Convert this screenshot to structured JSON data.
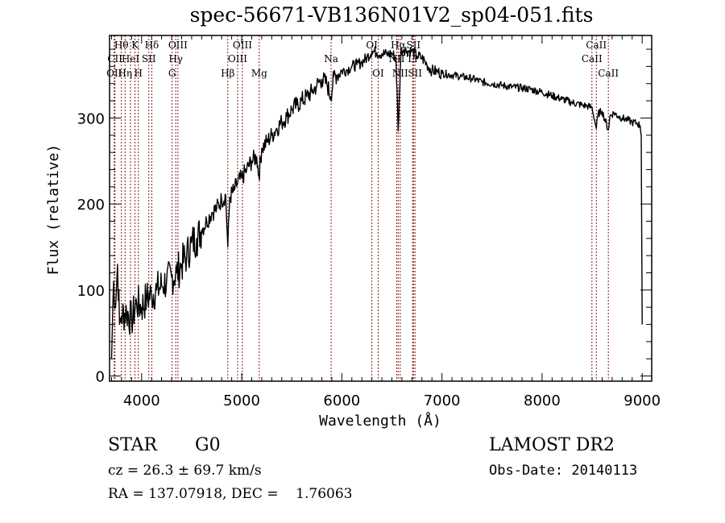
{
  "chart_data": {
    "type": "line",
    "title": "spec-56671-VB136N01V2_sp04-051.fits",
    "xlabel": "Wavelength (Å)",
    "ylabel": "Flux (relative)",
    "xlim": [
      3680,
      9095
    ],
    "ylim": [
      -6,
      396
    ],
    "grid": false,
    "xticks": [
      4000,
      5000,
      6000,
      7000,
      8000,
      9000
    ],
    "xtick_labels": [
      "4000",
      "5000",
      "6000",
      "7000",
      "8000",
      "9000"
    ],
    "yticks": [
      0,
      100,
      200,
      300
    ],
    "ytick_labels": [
      "0",
      "100",
      "200",
      "300"
    ],
    "series": [
      {
        "name": "flux",
        "x": [
          3700,
          3720,
          3740,
          3760,
          3780,
          3800,
          3850,
          3900,
          3950,
          4000,
          4050,
          4100,
          4150,
          4200,
          4250,
          4300,
          4350,
          4400,
          4450,
          4500,
          4550,
          4600,
          4650,
          4700,
          4750,
          4800,
          4840,
          4861,
          4880,
          4920,
          4960,
          5000,
          5050,
          5100,
          5150,
          5172,
          5200,
          5250,
          5300,
          5350,
          5400,
          5450,
          5500,
          5550,
          5600,
          5650,
          5700,
          5750,
          5800,
          5850,
          5890,
          5920,
          5950,
          6000,
          6050,
          6100,
          6150,
          6200,
          6250,
          6300,
          6350,
          6400,
          6450,
          6500,
          6540,
          6563,
          6590,
          6620,
          6650,
          6700,
          6750,
          6800,
          6850,
          6900,
          6950,
          7000,
          7100,
          7200,
          7300,
          7400,
          7500,
          7600,
          7700,
          7800,
          7900,
          8000,
          8100,
          8200,
          8300,
          8400,
          8450,
          8500,
          8542,
          8560,
          8600,
          8662,
          8680,
          8720,
          8760,
          8800,
          8850,
          8900,
          8950,
          8980,
          8990,
          9000
        ],
        "y": [
          20,
          110,
          80,
          130,
          60,
          70,
          75,
          65,
          85,
          80,
          90,
          95,
          100,
          105,
          110,
          115,
          120,
          130,
          140,
          155,
          160,
          170,
          180,
          190,
          195,
          205,
          210,
          150,
          208,
          215,
          225,
          230,
          240,
          250,
          255,
          232,
          265,
          272,
          280,
          288,
          295,
          302,
          310,
          315,
          320,
          325,
          330,
          338,
          345,
          340,
          325,
          348,
          350,
          355,
          356,
          360,
          362,
          365,
          370,
          378,
          376,
          375,
          374,
          375,
          370,
          285,
          378,
          380,
          378,
          378,
          372,
          370,
          362,
          355,
          354,
          352,
          350,
          348,
          346,
          342,
          340,
          338,
          336,
          335,
          333,
          330,
          326,
          322,
          318,
          315,
          314,
          312,
          288,
          305,
          308,
          286,
          303,
          306,
          302,
          300,
          298,
          295,
          294,
          291,
          280,
          60
        ]
      }
    ],
    "line_markers": [
      {
        "wavelength": 3727,
        "label": "OII",
        "row": 3
      },
      {
        "wavelength": 3734,
        "label": "CII",
        "row": 2
      },
      {
        "wavelength": 3798,
        "label": "Hθ",
        "row": 1
      },
      {
        "wavelength": 3835,
        "label": "Hη",
        "row": 3
      },
      {
        "wavelength": 3889,
        "label": "HeI",
        "row": 2
      },
      {
        "wavelength": 3934,
        "label": "K",
        "row": 1
      },
      {
        "wavelength": 3968,
        "label": "H",
        "row": 3
      },
      {
        "wavelength": 4072,
        "label": "SII",
        "row": 2
      },
      {
        "wavelength": 4102,
        "label": "Hδ",
        "row": 1
      },
      {
        "wavelength": 4305,
        "label": "G",
        "row": 3
      },
      {
        "wavelength": 4341,
        "label": "Hγ",
        "row": 2
      },
      {
        "wavelength": 4363,
        "label": "OIII",
        "row": 1
      },
      {
        "wavelength": 4861,
        "label": "Hβ",
        "row": 3
      },
      {
        "wavelength": 4959,
        "label": "OIII",
        "row": 2
      },
      {
        "wavelength": 5007,
        "label": "OIII",
        "row": 1
      },
      {
        "wavelength": 5175,
        "label": "Mg",
        "row": 3
      },
      {
        "wavelength": 5893,
        "label": "Na",
        "row": 2
      },
      {
        "wavelength": 6300,
        "label": "OI",
        "row": 1
      },
      {
        "wavelength": 6363,
        "label": "OI",
        "row": 3
      },
      {
        "wavelength": 6548,
        "label": "NII",
        "row": 2
      },
      {
        "wavelength": 6563,
        "label": "Hα",
        "row": 1
      },
      {
        "wavelength": 6583,
        "label": "NII",
        "row": 3
      },
      {
        "wavelength": 6707,
        "label": "Li",
        "row": 2
      },
      {
        "wavelength": 6716,
        "label": "SII",
        "row": 1
      },
      {
        "wavelength": 6731,
        "label": "SII",
        "row": 3
      },
      {
        "wavelength": 8498,
        "label": "CaII",
        "row": 2
      },
      {
        "wavelength": 8542,
        "label": "CaII",
        "row": 1
      },
      {
        "wavelength": 8662,
        "label": "CaII",
        "row": 3
      }
    ]
  },
  "info": {
    "class": "STAR",
    "subclass": "G0",
    "cz": "cz = 26.3 ± 69.7 km/s",
    "radec": "RA = 137.07918, DEC =    1.76063",
    "survey": "LAMOST DR2",
    "obs_date": "Obs-Date: 20140113"
  },
  "colors": {
    "line": "#000000",
    "marker": "#8b1a1a"
  }
}
